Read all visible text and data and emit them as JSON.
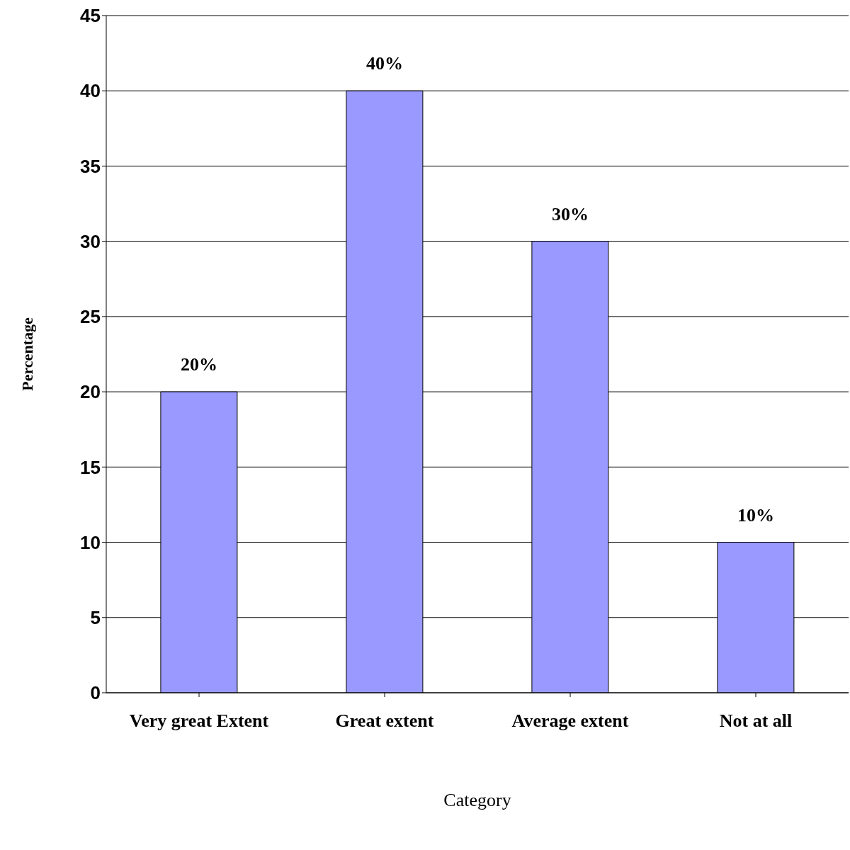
{
  "chart_data": {
    "type": "bar",
    "xlabel": "Category",
    "ylabel": "Percentage",
    "categories": [
      "Very great Extent",
      "Great extent",
      "Average extent",
      "Not at all"
    ],
    "values": [
      20,
      40,
      30,
      10
    ],
    "value_labels": [
      "20%",
      "40%",
      "30%",
      "10%"
    ],
    "color": "#9999ff",
    "ylim": [
      0,
      45
    ],
    "yticks": [
      0,
      5,
      10,
      15,
      20,
      25,
      30,
      35,
      40,
      45
    ],
    "grid": "y"
  }
}
